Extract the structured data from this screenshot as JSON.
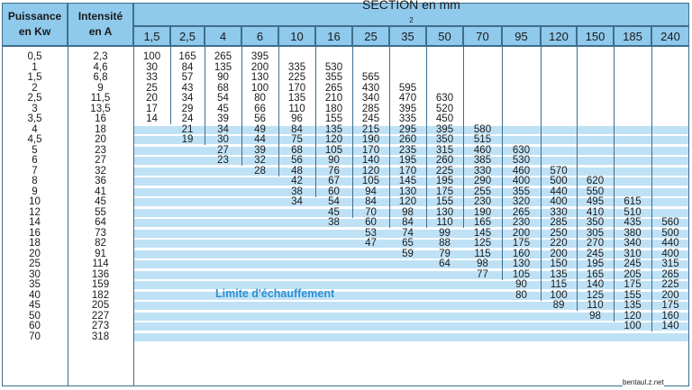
{
  "headers": {
    "power": [
      "Puissance",
      "en Kw"
    ],
    "current": [
      "Intensité",
      "en A"
    ],
    "section_title": "SECTION en mm",
    "section_sup": "2",
    "sections": [
      "1,5",
      "2,5",
      "4",
      "6",
      "10",
      "16",
      "25",
      "35",
      "50",
      "70",
      "95",
      "120",
      "150",
      "185",
      "240"
    ]
  },
  "powers": [
    "0,5",
    "1",
    "1,5",
    "2",
    "2,5",
    "3",
    "3,5",
    "4",
    "4,5",
    "5",
    "6",
    "7",
    "8",
    "9",
    "10",
    "12",
    "14",
    "16",
    "18",
    "20",
    "25",
    "30",
    "35",
    "40",
    "45",
    "50",
    "60",
    "70"
  ],
  "currents": [
    "2,3",
    "4,6",
    "6,8",
    "9",
    "11,5",
    "13,5",
    "16",
    "18",
    "20",
    "23",
    "27",
    "32",
    "36",
    "41",
    "45",
    "55",
    "64",
    "73",
    "82",
    "91",
    "114",
    "136",
    "159",
    "182",
    "205",
    "227",
    "273",
    "318"
  ],
  "limits": [
    [
      {
        "s": 0,
        "v": [
          "100",
          "30",
          "33",
          "25",
          "20",
          "17",
          "14"
        ]
      },
      {
        "s": 0,
        "v": [
          "165",
          "84",
          "57",
          "43",
          "34",
          "29",
          "24",
          "21",
          "19"
        ]
      },
      {
        "s": 0,
        "v": [
          "265",
          "135",
          "90",
          "68",
          "54",
          "45",
          "39",
          "34",
          "30",
          "27",
          "23"
        ]
      },
      {
        "s": 0,
        "v": [
          "395",
          "200",
          "130",
          "100",
          "80",
          "66",
          "56",
          "49",
          "44",
          "39",
          "32",
          "28"
        ]
      },
      {
        "s": 1,
        "v": [
          "335",
          "225",
          "170",
          "135",
          "110",
          "96",
          "84",
          "75",
          "68",
          "56",
          "48",
          "42",
          "38",
          "34"
        ]
      },
      {
        "s": 1,
        "v": [
          "530",
          "355",
          "265",
          "210",
          "180",
          "155",
          "135",
          "120",
          "105",
          "90",
          "76",
          "67",
          "60",
          "54",
          "45",
          "38"
        ]
      },
      {
        "s": 2,
        "v": [
          "565",
          "430",
          "340",
          "285",
          "245",
          "215",
          "190",
          "170",
          "140",
          "120",
          "105",
          "94",
          "84",
          "70",
          "60",
          "53",
          "47"
        ]
      },
      {
        "s": 3,
        "v": [
          "595",
          "470",
          "395",
          "335",
          "295",
          "260",
          "235",
          "195",
          "170",
          "145",
          "130",
          "120",
          "98",
          "84",
          "74",
          "65",
          "59"
        ]
      },
      {
        "s": 4,
        "v": [
          "630",
          "520",
          "450",
          "395",
          "350",
          "315",
          "260",
          "225",
          "195",
          "175",
          "155",
          "130",
          "110",
          "99",
          "88",
          "79",
          "64"
        ]
      },
      {
        "s": 7,
        "v": [
          "580",
          "515",
          "460",
          "385",
          "330",
          "290",
          "255",
          "230",
          "190",
          "165",
          "145",
          "125",
          "115",
          "98",
          "77"
        ]
      },
      {
        "s": 9,
        "v": [
          "630",
          "530",
          "460",
          "400",
          "355",
          "320",
          "265",
          "230",
          "200",
          "175",
          "160",
          "130",
          "105",
          "90",
          "80"
        ]
      },
      {
        "s": 11,
        "v": [
          "570",
          "500",
          "440",
          "400",
          "330",
          "285",
          "250",
          "220",
          "200",
          "150",
          "135",
          "115",
          "100",
          "89"
        ]
      },
      {
        "s": 12,
        "v": [
          "620",
          "550",
          "495",
          "410",
          "350",
          "305",
          "270",
          "245",
          "195",
          "165",
          "140",
          "125",
          "110",
          "98"
        ]
      },
      {
        "s": 14,
        "v": [
          "615",
          "510",
          "435",
          "380",
          "340",
          "310",
          "245",
          "205",
          "175",
          "155",
          "135",
          "120",
          "100"
        ]
      },
      {
        "s": 16,
        "v": [
          "560",
          "500",
          "440",
          "400",
          "315",
          "265",
          "225",
          "200",
          "175",
          "160",
          "140"
        ]
      }
    ]
  ],
  "limit_label": "Limite d'échauffement",
  "watermark": "bentaul.z.net",
  "colors": {
    "header_fill": "#8fc9ec",
    "band_fill": "#bfe1f5",
    "grid_line": "#3f6e8c",
    "limit_text": "#2e8fd3"
  }
}
